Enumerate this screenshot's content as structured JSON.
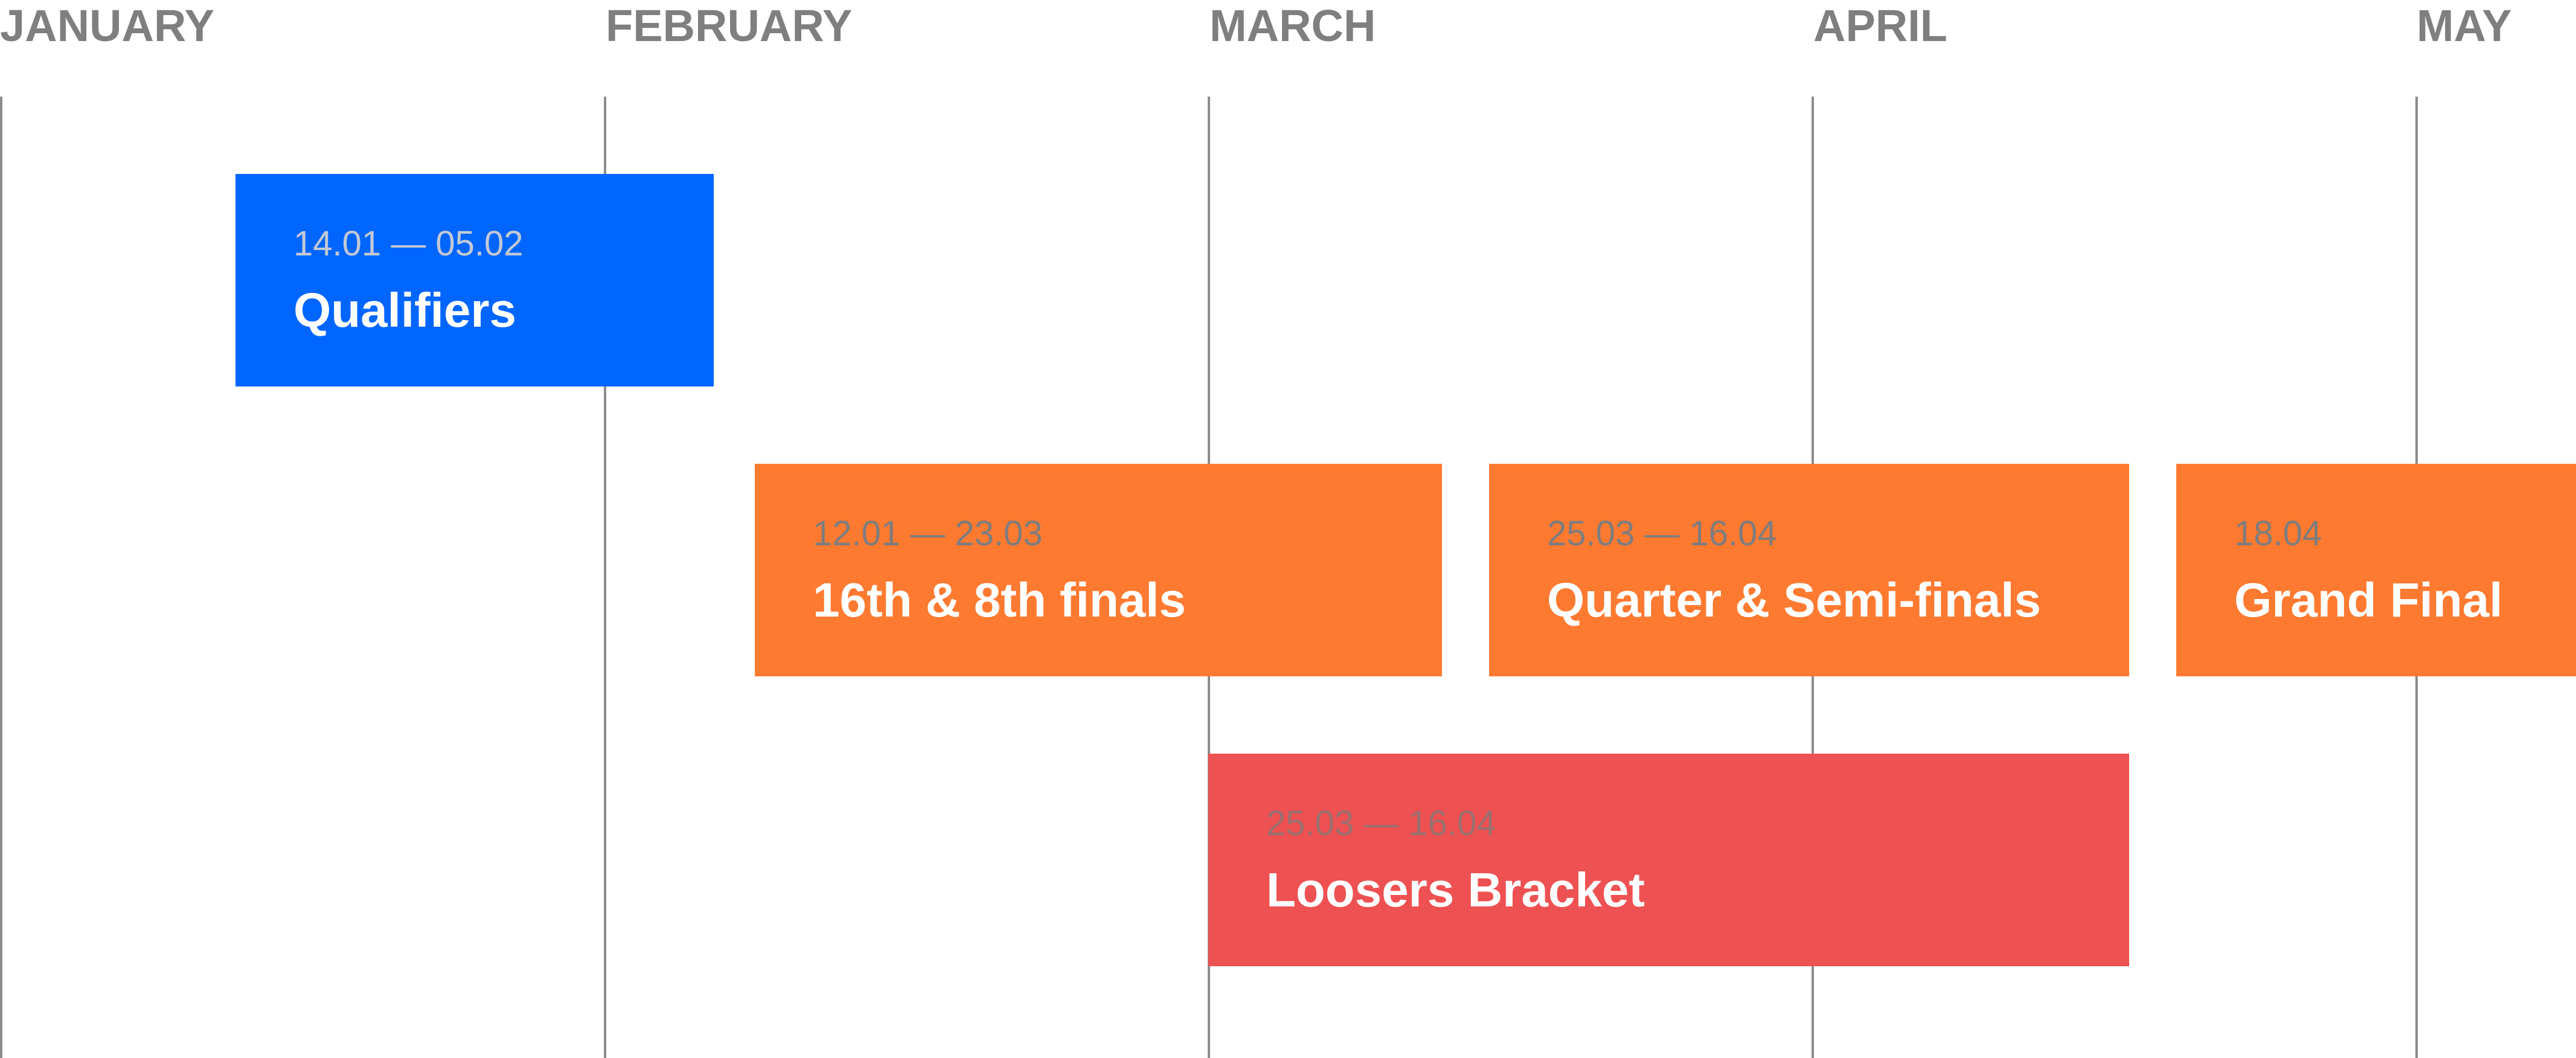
{
  "months": [
    {
      "label": "JANUARY"
    },
    {
      "label": "FEBRUARY"
    },
    {
      "label": "MARCH"
    },
    {
      "label": "APRIL"
    },
    {
      "label": "MAY"
    }
  ],
  "events": {
    "qualifiers": {
      "dates": "14.01 — 05.02",
      "name": "Qualifiers",
      "color": "#0066ff"
    },
    "finals16": {
      "dates": "12.01 — 23.03",
      "name": "16th & 8th finals",
      "color": "#ff7a31"
    },
    "quarter": {
      "dates": "25.03 — 16.04",
      "name": "Quarter & Semi-finals",
      "color": "#ff7a31"
    },
    "grand": {
      "dates": "18.04",
      "name": "Grand Final",
      "color": "#ff7a31"
    },
    "loosers": {
      "dates": "25.03 — 16.04",
      "name": "Loosers Bracket",
      "color": "#ee5152"
    }
  }
}
